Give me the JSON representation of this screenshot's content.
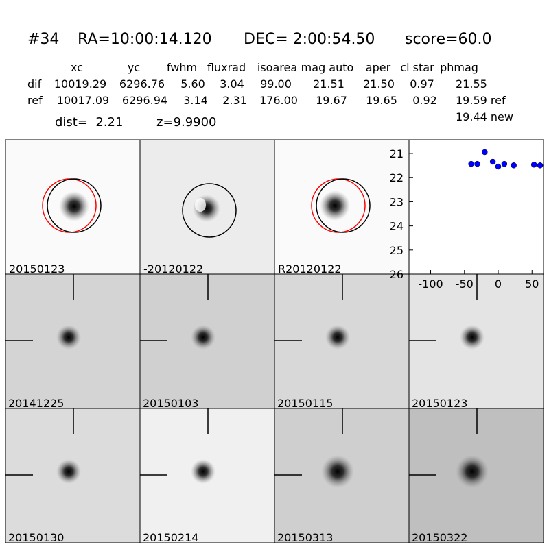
{
  "header": {
    "id": "#34",
    "ra": "RA=10:00:14.120",
    "dec": "DEC= 2:00:54.50",
    "score": "score=60.0"
  },
  "table": {
    "columns": [
      "xc",
      "yc",
      "fwhm",
      "fluxrad",
      "isoarea",
      "mag auto",
      "aper",
      "cl star",
      "phmag"
    ],
    "rows": [
      [
        "dif",
        "10019.29",
        "6296.76",
        "5.60",
        "3.04",
        "99.00",
        "21.51",
        "21.50",
        "0.97",
        "21.55"
      ],
      [
        "ref",
        "10017.09",
        "6296.94",
        "3.14",
        "2.31",
        "176.00",
        "19.67",
        "19.65",
        "0.92",
        "19.59 ref"
      ]
    ],
    "extra": "19.44 new"
  },
  "dist": "dist=  2.21",
  "z": "z=9.9900",
  "top_panels": [
    {
      "label": "20150123"
    },
    {
      "label": "-20120122"
    },
    {
      "label": "R20120122"
    }
  ],
  "panels": [
    {
      "label": "20141225"
    },
    {
      "label": "20150103"
    },
    {
      "label": "20150115"
    },
    {
      "label": "20150123",
      "color": "#ff0000"
    },
    {
      "label": "20150130"
    },
    {
      "label": "20150214"
    },
    {
      "label": "20150313"
    },
    {
      "label": "20150322"
    }
  ],
  "chart_data": {
    "type": "scatter",
    "color": "#0000ff",
    "x": [
      -40,
      -31,
      -20,
      -8,
      0,
      9,
      23,
      53,
      62
    ],
    "values": [
      21.43,
      21.43,
      20.94,
      21.34,
      21.54,
      21.43,
      21.49,
      21.46,
      21.49
    ],
    "xlim": [
      -132,
      67
    ],
    "xticks": [
      -100,
      -50,
      0,
      50
    ],
    "ylim": [
      26,
      20.43
    ],
    "yticks": [
      21,
      22,
      23,
      24,
      25,
      26
    ]
  }
}
